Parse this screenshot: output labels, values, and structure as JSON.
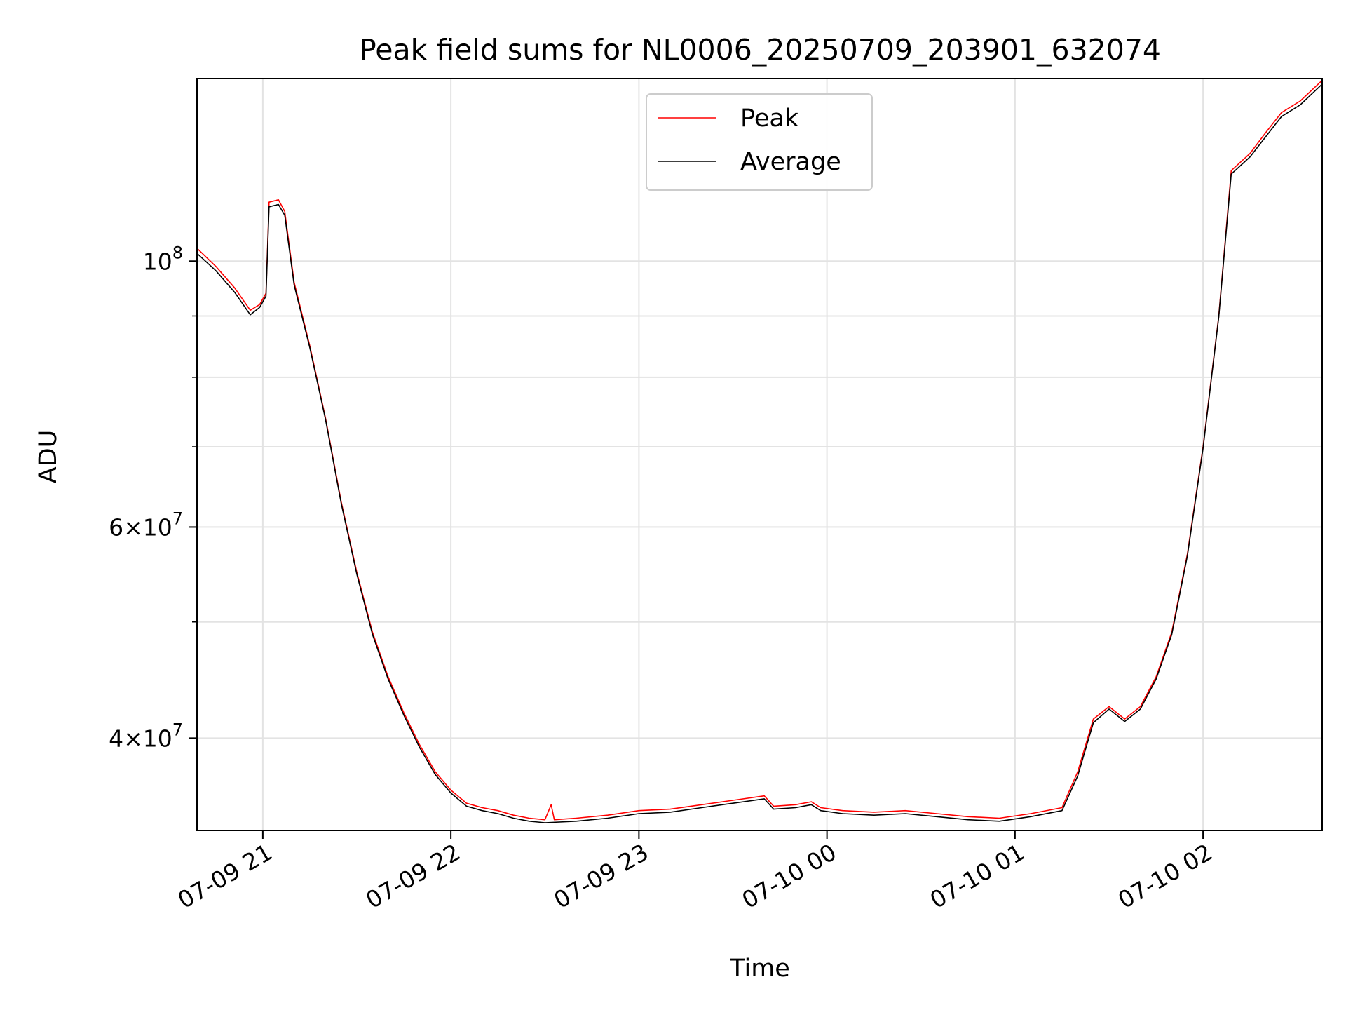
{
  "chart_data": {
    "type": "line",
    "title": "Peak field sums for NL0006_20250709_203901_632074",
    "xlabel": "Time",
    "ylabel": "ADU",
    "y_scale": "log",
    "ylim": [
      33500000,
      142000000
    ],
    "xlim": [
      "2025-07-09 20:39",
      "2025-07-10 02:38"
    ],
    "x_ticks": [
      {
        "t": "2025-07-09 21:00",
        "label": "07-09 21"
      },
      {
        "t": "2025-07-09 22:00",
        "label": "07-09 22"
      },
      {
        "t": "2025-07-09 23:00",
        "label": "07-09 23"
      },
      {
        "t": "2025-07-10 00:00",
        "label": "07-10 00"
      },
      {
        "t": "2025-07-10 01:00",
        "label": "07-10 01"
      },
      {
        "t": "2025-07-10 02:00",
        "label": "07-10 02"
      }
    ],
    "y_ticks": [
      {
        "v": 40000000,
        "base": "4",
        "exp": "7"
      },
      {
        "v": 60000000,
        "base": "6",
        "exp": "7"
      },
      {
        "v": 100000000,
        "base": "",
        "exp": "8"
      }
    ],
    "y_minor_ticks": [
      50000000,
      70000000,
      80000000,
      90000000
    ],
    "grid": true,
    "legend_position": "upper-center",
    "series": [
      {
        "name": "Peak",
        "color": "#ff0000",
        "points": [
          [
            "2025-07-09 20:39",
            102500000
          ],
          [
            "2025-07-09 20:45",
            99000000
          ],
          [
            "2025-07-09 20:51",
            95000000
          ],
          [
            "2025-07-09 20:56",
            91000000
          ],
          [
            "2025-07-09 20:59",
            92000000
          ],
          [
            "2025-07-09 21:01",
            94000000
          ],
          [
            "2025-07-09 21:02",
            112000000
          ],
          [
            "2025-07-09 21:05",
            112500000
          ],
          [
            "2025-07-09 21:07",
            110000000
          ],
          [
            "2025-07-09 21:10",
            96000000
          ],
          [
            "2025-07-09 21:15",
            85000000
          ],
          [
            "2025-07-09 21:20",
            74000000
          ],
          [
            "2025-07-09 21:25",
            63000000
          ],
          [
            "2025-07-09 21:30",
            55000000
          ],
          [
            "2025-07-09 21:35",
            49000000
          ],
          [
            "2025-07-09 21:40",
            45000000
          ],
          [
            "2025-07-09 21:45",
            42000000
          ],
          [
            "2025-07-09 21:50",
            39500000
          ],
          [
            "2025-07-09 21:55",
            37500000
          ],
          [
            "2025-07-09 22:00",
            36200000
          ],
          [
            "2025-07-09 22:05",
            35300000
          ],
          [
            "2025-07-09 22:10",
            35000000
          ],
          [
            "2025-07-09 22:15",
            34800000
          ],
          [
            "2025-07-09 22:20",
            34500000
          ],
          [
            "2025-07-09 22:25",
            34300000
          ],
          [
            "2025-07-09 22:30",
            34200000
          ],
          [
            "2025-07-09 22:32",
            35200000
          ],
          [
            "2025-07-09 22:33",
            34200000
          ],
          [
            "2025-07-09 22:40",
            34300000
          ],
          [
            "2025-07-09 22:50",
            34500000
          ],
          [
            "2025-07-09 23:00",
            34800000
          ],
          [
            "2025-07-09 23:10",
            34900000
          ],
          [
            "2025-07-09 23:20",
            35200000
          ],
          [
            "2025-07-09 23:30",
            35500000
          ],
          [
            "2025-07-09 23:40",
            35800000
          ],
          [
            "2025-07-09 23:43",
            35100000
          ],
          [
            "2025-07-09 23:50",
            35200000
          ],
          [
            "2025-07-09 23:55",
            35400000
          ],
          [
            "2025-07-09 23:58",
            35000000
          ],
          [
            "2025-07-10 00:05",
            34800000
          ],
          [
            "2025-07-10 00:15",
            34700000
          ],
          [
            "2025-07-10 00:25",
            34800000
          ],
          [
            "2025-07-10 00:35",
            34600000
          ],
          [
            "2025-07-10 00:45",
            34400000
          ],
          [
            "2025-07-10 00:55",
            34300000
          ],
          [
            "2025-07-10 01:05",
            34600000
          ],
          [
            "2025-07-10 01:15",
            35000000
          ],
          [
            "2025-07-10 01:20",
            37500000
          ],
          [
            "2025-07-10 01:25",
            41500000
          ],
          [
            "2025-07-10 01:30",
            42500000
          ],
          [
            "2025-07-10 01:35",
            41500000
          ],
          [
            "2025-07-10 01:40",
            42500000
          ],
          [
            "2025-07-10 01:45",
            45000000
          ],
          [
            "2025-07-10 01:50",
            49000000
          ],
          [
            "2025-07-10 01:55",
            57000000
          ],
          [
            "2025-07-10 02:00",
            70000000
          ],
          [
            "2025-07-10 02:05",
            90000000
          ],
          [
            "2025-07-10 02:09",
            119000000
          ],
          [
            "2025-07-10 02:15",
            123000000
          ],
          [
            "2025-07-10 02:20",
            128000000
          ],
          [
            "2025-07-10 02:25",
            133000000
          ],
          [
            "2025-07-10 02:31",
            136000000
          ],
          [
            "2025-07-10 02:38",
            141500000
          ]
        ]
      },
      {
        "name": "Average",
        "color": "#000000",
        "points": [
          [
            "2025-07-09 20:39",
            101500000
          ],
          [
            "2025-07-09 20:45",
            98200000
          ],
          [
            "2025-07-09 20:51",
            94200000
          ],
          [
            "2025-07-09 20:56",
            90200000
          ],
          [
            "2025-07-09 20:59",
            91500000
          ],
          [
            "2025-07-09 21:01",
            93500000
          ],
          [
            "2025-07-09 21:02",
            111000000
          ],
          [
            "2025-07-09 21:05",
            111500000
          ],
          [
            "2025-07-09 21:07",
            109200000
          ],
          [
            "2025-07-09 21:10",
            95500000
          ],
          [
            "2025-07-09 21:15",
            84700000
          ],
          [
            "2025-07-09 21:20",
            73800000
          ],
          [
            "2025-07-09 21:25",
            62800000
          ],
          [
            "2025-07-09 21:30",
            54800000
          ],
          [
            "2025-07-09 21:35",
            48800000
          ],
          [
            "2025-07-09 21:40",
            44800000
          ],
          [
            "2025-07-09 21:45",
            41800000
          ],
          [
            "2025-07-09 21:50",
            39300000
          ],
          [
            "2025-07-09 21:55",
            37300000
          ],
          [
            "2025-07-09 22:00",
            36000000
          ],
          [
            "2025-07-09 22:05",
            35100000
          ],
          [
            "2025-07-09 22:10",
            34800000
          ],
          [
            "2025-07-09 22:15",
            34600000
          ],
          [
            "2025-07-09 22:20",
            34300000
          ],
          [
            "2025-07-09 22:25",
            34100000
          ],
          [
            "2025-07-09 22:30",
            34000000
          ],
          [
            "2025-07-09 22:40",
            34100000
          ],
          [
            "2025-07-09 22:50",
            34300000
          ],
          [
            "2025-07-09 23:00",
            34600000
          ],
          [
            "2025-07-09 23:10",
            34700000
          ],
          [
            "2025-07-09 23:20",
            35000000
          ],
          [
            "2025-07-09 23:30",
            35300000
          ],
          [
            "2025-07-09 23:40",
            35600000
          ],
          [
            "2025-07-09 23:43",
            34900000
          ],
          [
            "2025-07-09 23:50",
            35000000
          ],
          [
            "2025-07-09 23:55",
            35200000
          ],
          [
            "2025-07-09 23:58",
            34800000
          ],
          [
            "2025-07-10 00:05",
            34600000
          ],
          [
            "2025-07-10 00:15",
            34500000
          ],
          [
            "2025-07-10 00:25",
            34600000
          ],
          [
            "2025-07-10 00:35",
            34400000
          ],
          [
            "2025-07-10 00:45",
            34200000
          ],
          [
            "2025-07-10 00:55",
            34100000
          ],
          [
            "2025-07-10 01:05",
            34400000
          ],
          [
            "2025-07-10 01:15",
            34800000
          ],
          [
            "2025-07-10 01:20",
            37200000
          ],
          [
            "2025-07-10 01:25",
            41200000
          ],
          [
            "2025-07-10 01:30",
            42300000
          ],
          [
            "2025-07-10 01:35",
            41300000
          ],
          [
            "2025-07-10 01:40",
            42300000
          ],
          [
            "2025-07-10 01:45",
            44800000
          ],
          [
            "2025-07-10 01:50",
            48800000
          ],
          [
            "2025-07-10 01:55",
            56800000
          ],
          [
            "2025-07-10 02:00",
            69800000
          ],
          [
            "2025-07-10 02:05",
            89800000
          ],
          [
            "2025-07-10 02:09",
            118200000
          ],
          [
            "2025-07-10 02:15",
            122200000
          ],
          [
            "2025-07-10 02:20",
            127000000
          ],
          [
            "2025-07-10 02:25",
            132000000
          ],
          [
            "2025-07-10 02:31",
            135000000
          ],
          [
            "2025-07-10 02:38",
            140500000
          ]
        ]
      }
    ]
  }
}
